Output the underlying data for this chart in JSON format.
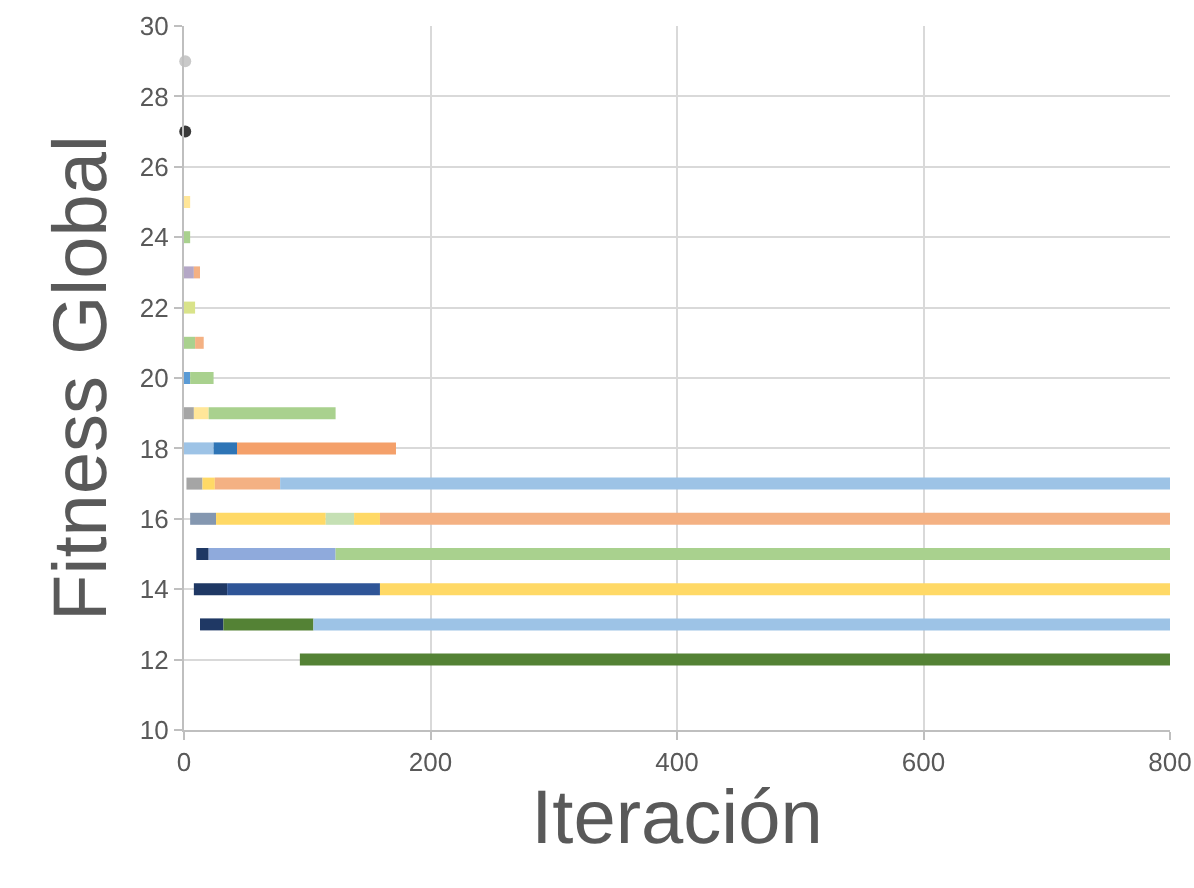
{
  "chart_data": {
    "type": "line",
    "xlabel": "Iteración",
    "ylabel": "Fitness Global",
    "xlim": [
      0,
      800
    ],
    "ylim": [
      10,
      30
    ],
    "xticks": [
      0,
      200,
      400,
      600,
      800
    ],
    "yticks": [
      10,
      12,
      14,
      16,
      18,
      20,
      22,
      24,
      26,
      28,
      30
    ],
    "grid": true,
    "marker": "none",
    "line_style": "solid",
    "series": [
      {
        "color": "#548235",
        "x": [
          94,
          800
        ],
        "values": [
          12,
          12
        ]
      },
      {
        "color": "#1f3864",
        "x": [
          13,
          32
        ],
        "values": [
          13,
          13
        ]
      },
      {
        "color": "#548235",
        "x": [
          32,
          105
        ],
        "values": [
          13,
          13
        ]
      },
      {
        "color": "#9dc3e6",
        "x": [
          105,
          800
        ],
        "values": [
          13,
          13
        ]
      },
      {
        "color": "#1f3864",
        "x": [
          8,
          35
        ],
        "values": [
          14,
          14
        ]
      },
      {
        "color": "#2f5597",
        "x": [
          35,
          159
        ],
        "values": [
          14,
          14
        ]
      },
      {
        "color": "#ffd966",
        "x": [
          159,
          800
        ],
        "values": [
          14,
          14
        ]
      },
      {
        "color": "#1f3864",
        "x": [
          10,
          20
        ],
        "values": [
          15,
          15
        ]
      },
      {
        "color": "#8faadc",
        "x": [
          20,
          123
        ],
        "values": [
          15,
          15
        ]
      },
      {
        "color": "#a9d18e",
        "x": [
          123,
          800
        ],
        "values": [
          15,
          15
        ]
      },
      {
        "color": "#8497b0",
        "x": [
          5,
          26
        ],
        "values": [
          16,
          16
        ]
      },
      {
        "color": "#ffd966",
        "x": [
          26,
          115
        ],
        "values": [
          16,
          16
        ]
      },
      {
        "color": "#c5e0b4",
        "x": [
          115,
          138
        ],
        "values": [
          16,
          16
        ]
      },
      {
        "color": "#ffd966",
        "x": [
          138,
          159
        ],
        "values": [
          16,
          16
        ]
      },
      {
        "color": "#f4b183",
        "x": [
          159,
          800
        ],
        "values": [
          16,
          16
        ]
      },
      {
        "color": "#a5a5a5",
        "x": [
          2,
          15
        ],
        "values": [
          17,
          17
        ]
      },
      {
        "color": "#ffd966",
        "x": [
          15,
          25
        ],
        "values": [
          17,
          17
        ]
      },
      {
        "color": "#f4b183",
        "x": [
          25,
          78
        ],
        "values": [
          17,
          17
        ]
      },
      {
        "color": "#9dc3e6",
        "x": [
          78,
          800
        ],
        "values": [
          17,
          17
        ]
      },
      {
        "color": "#9dc3e6",
        "x": [
          0,
          24
        ],
        "values": [
          18,
          18
        ]
      },
      {
        "color": "#2e75b6",
        "x": [
          24,
          43
        ],
        "values": [
          18,
          18
        ]
      },
      {
        "color": "#f4a06a",
        "x": [
          43,
          172
        ],
        "values": [
          18,
          18
        ]
      },
      {
        "color": "#a5a5a5",
        "x": [
          0,
          8
        ],
        "values": [
          19,
          19
        ]
      },
      {
        "color": "#ffe699",
        "x": [
          8,
          20
        ],
        "values": [
          19,
          19
        ]
      },
      {
        "color": "#a9d18e",
        "x": [
          20,
          123
        ],
        "values": [
          19,
          19
        ]
      },
      {
        "color": "#5b9bd5",
        "x": [
          0,
          5
        ],
        "values": [
          20,
          20
        ]
      },
      {
        "color": "#a9d18e",
        "x": [
          5,
          24
        ],
        "values": [
          20,
          20
        ]
      },
      {
        "color": "#a9d18e",
        "x": [
          0,
          9
        ],
        "values": [
          21,
          21
        ]
      },
      {
        "color": "#f4b183",
        "x": [
          9,
          16
        ],
        "values": [
          21,
          21
        ]
      },
      {
        "color": "#d9e38a",
        "x": [
          0,
          9
        ],
        "values": [
          22,
          22
        ]
      },
      {
        "color": "#b4a7c6",
        "x": [
          0,
          8
        ],
        "values": [
          23,
          23
        ]
      },
      {
        "color": "#f4b183",
        "x": [
          8,
          13
        ],
        "values": [
          23,
          23
        ]
      },
      {
        "color": "#a9d18e",
        "x": [
          0,
          5
        ],
        "values": [
          24,
          24
        ]
      },
      {
        "color": "#ffe699",
        "x": [
          0,
          5
        ],
        "values": [
          25,
          25
        ]
      },
      {
        "type": "scatter",
        "marker": "circle",
        "color": "#3a3a3a",
        "x": [
          1
        ],
        "values": [
          27
        ]
      },
      {
        "type": "scatter",
        "marker": "circle",
        "color": "#c9c9c9",
        "x": [
          1
        ],
        "values": [
          29
        ]
      }
    ]
  }
}
